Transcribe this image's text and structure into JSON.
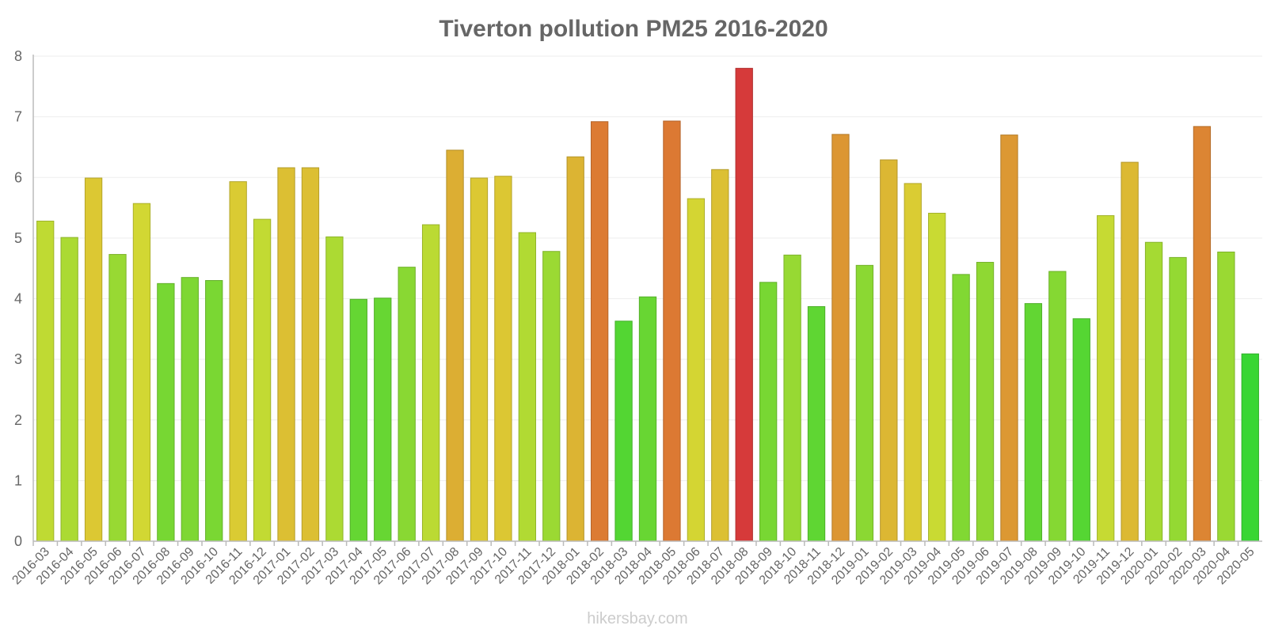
{
  "chart_data": {
    "type": "bar",
    "title": "Tiverton pollution PM25 2016-2020",
    "xlabel": "",
    "ylabel": "",
    "ylim": [
      0,
      8
    ],
    "yticks": [
      "0",
      "1",
      "2",
      "3",
      "4",
      "5",
      "6",
      "7",
      "8"
    ],
    "grid": true,
    "categories": [
      "2016-03",
      "2016-04",
      "2016-05",
      "2016-06",
      "2016-07",
      "2016-08",
      "2016-09",
      "2016-10",
      "2016-11",
      "2016-12",
      "2017-01",
      "2017-02",
      "2017-03",
      "2017-04",
      "2017-05",
      "2017-06",
      "2017-07",
      "2017-08",
      "2017-09",
      "2017-10",
      "2017-11",
      "2017-12",
      "2018-01",
      "2018-02",
      "2018-03",
      "2018-04",
      "2018-05",
      "2018-06",
      "2018-07",
      "2018-08",
      "2018-09",
      "2018-10",
      "2018-11",
      "2018-12",
      "2019-01",
      "2019-02",
      "2019-03",
      "2019-04",
      "2019-05",
      "2019-06",
      "2019-07",
      "2019-08",
      "2019-09",
      "2019-10",
      "2019-11",
      "2019-12",
      "2020-01",
      "2020-02",
      "2020-03",
      "2020-04",
      "2020-05"
    ],
    "values": [
      5.28,
      5.01,
      5.99,
      4.73,
      5.57,
      4.25,
      4.35,
      4.3,
      5.93,
      5.31,
      6.16,
      6.16,
      5.02,
      3.99,
      4.01,
      4.52,
      5.22,
      6.45,
      5.99,
      6.02,
      5.09,
      4.78,
      6.34,
      6.92,
      3.63,
      4.03,
      6.93,
      5.65,
      6.13,
      7.8,
      4.27,
      4.72,
      3.87,
      6.71,
      4.55,
      6.29,
      5.9,
      5.41,
      4.4,
      4.6,
      6.7,
      3.92,
      4.45,
      3.67,
      5.37,
      6.25,
      4.93,
      4.68,
      6.84,
      4.77,
      3.09
    ]
  },
  "watermark": "hikersbay.com"
}
